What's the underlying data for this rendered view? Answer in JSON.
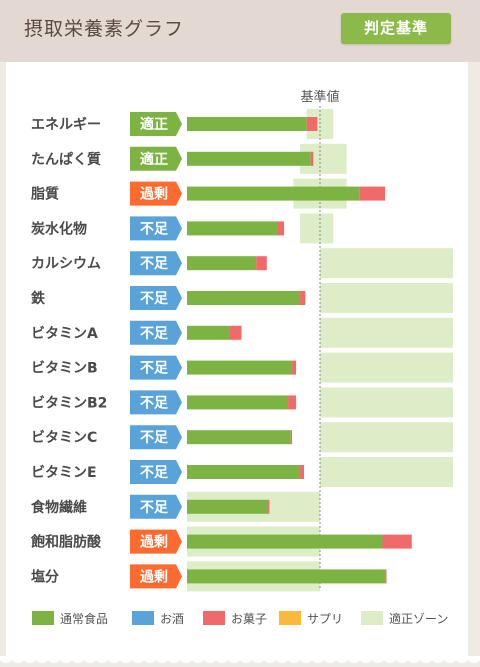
{
  "header": {
    "title": "摂取栄養素グラフ",
    "judge_button": "判定基準"
  },
  "chart_data": {
    "type": "bar",
    "orientation": "horizontal",
    "stacked": true,
    "reference_label": "基準値",
    "categories": [
      "エネルギー",
      "たんぱく質",
      "脂質",
      "炭水化物",
      "カルシウム",
      "鉄",
      "ビタミンA",
      "ビタミンB",
      "ビタミンB2",
      "ビタミンC",
      "ビタミンE",
      "食物繊維",
      "飽和脂肪酸",
      "塩分"
    ],
    "status": [
      "適正",
      "適正",
      "過剰",
      "不足",
      "不足",
      "不足",
      "不足",
      "不足",
      "不足",
      "不足",
      "不足",
      "不足",
      "過剰",
      "過剰"
    ],
    "series": [
      {
        "name": "通常食品",
        "values": [
          90,
          93,
          130,
          68,
          52,
          85,
          32,
          79,
          76,
          78,
          85,
          61,
          147,
          149
        ]
      },
      {
        "name": "お酒",
        "values": [
          0,
          0,
          0,
          0,
          0,
          0,
          0,
          0,
          0,
          0,
          0,
          0,
          0,
          0
        ]
      },
      {
        "name": "お菓子",
        "values": [
          8,
          2,
          19,
          5,
          8,
          4,
          9,
          3,
          6,
          1,
          3,
          1,
          22,
          1
        ]
      },
      {
        "name": "サプリ",
        "values": [
          0,
          0,
          0,
          0,
          0,
          0,
          0,
          0,
          0,
          0,
          0,
          0,
          0,
          0
        ]
      }
    ],
    "normal_zone": [
      [
        90,
        110
      ],
      [
        85,
        120
      ],
      [
        80,
        120
      ],
      [
        85,
        110
      ],
      [
        100,
        200
      ],
      [
        100,
        200
      ],
      [
        100,
        200
      ],
      [
        100,
        200
      ],
      [
        100,
        200
      ],
      [
        100,
        200
      ],
      [
        100,
        200
      ],
      [
        0,
        100
      ],
      [
        0,
        100
      ],
      [
        0,
        100
      ]
    ],
    "reference_value": 100
  },
  "legend": [
    {
      "label": "通常食品",
      "color": "#7cb342"
    },
    {
      "label": "お酒",
      "color": "#5aa3d8"
    },
    {
      "label": "お菓子",
      "color": "#f06a6a"
    },
    {
      "label": "サプリ",
      "color": "#fbb93a"
    },
    {
      "label": "適正ゾーン",
      "color": "#dcedc8"
    }
  ],
  "status_colors": {
    "適正": "#7cb342",
    "過剰": "#ff6a2e",
    "不足": "#5aa3d8"
  }
}
